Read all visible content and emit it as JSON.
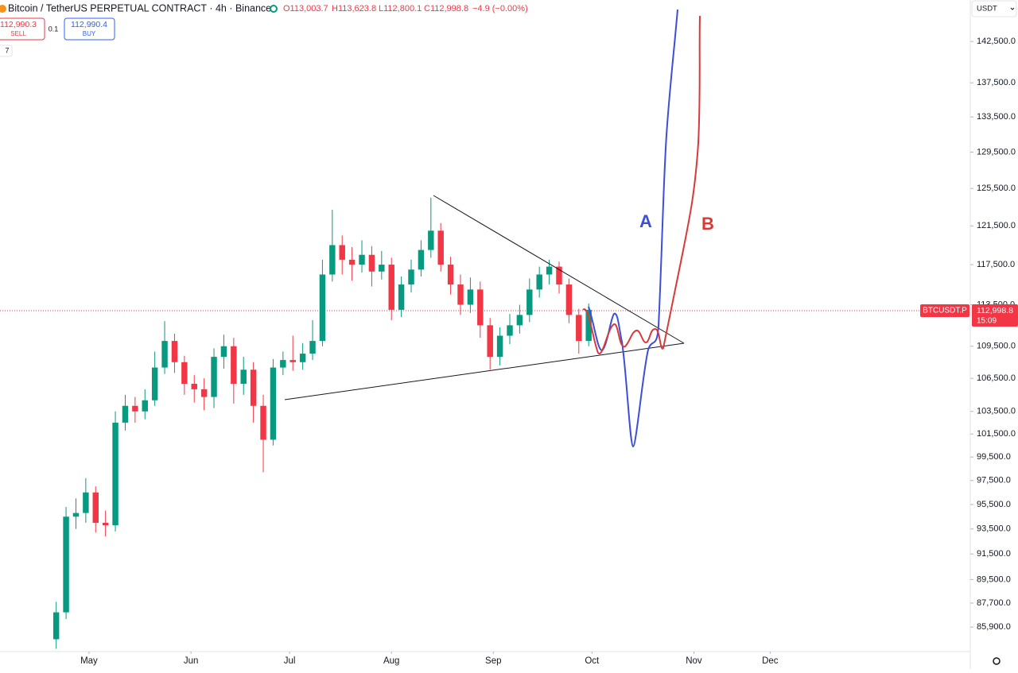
{
  "header": {
    "symbol": "Bitcoin / TetherUS PERPETUAL CONTRACT · 4h · Binance",
    "open": "O113,003.7",
    "high": "H113,623.8",
    "low": "L112,800.1",
    "close": "C112,998.8",
    "change": "−4.9 (−0.00%)"
  },
  "order_panel": {
    "sell_price": "112,990.3",
    "sell": "SELL",
    "spread": "0.1",
    "buy_price": "112,990.4",
    "buy": "BUY",
    "indicator": "7"
  },
  "currency": "USDT",
  "price_tag": {
    "symbol": "BTCUSDT.P",
    "price": "112,998.8",
    "countdown": "15:09"
  },
  "drawings": {
    "label_a": "A",
    "label_b": "B"
  },
  "chart_data": {
    "type": "candlestick",
    "up_color": "#089981",
    "down_color": "#f23645",
    "log_scale": true,
    "grid": false,
    "open": [
      85000,
      87000,
      94500,
      94800,
      96500,
      94000,
      93800,
      102500,
      104000,
      103500,
      104500,
      107500,
      110000,
      108000,
      106000,
      105500,
      104800,
      108500,
      109500,
      106000,
      107300,
      104000,
      101000,
      107500,
      108200,
      108000,
      108800,
      110000,
      116500,
      119500,
      118000,
      117500,
      118500,
      116800,
      117500,
      113000,
      115500,
      117000,
      119000,
      121000,
      117500,
      115500,
      113500,
      115000,
      111500,
      108500,
      110500,
      111500,
      112500,
      115000,
      116500,
      117300,
      115500,
      112500,
      110000
    ],
    "high": [
      87800,
      95300,
      96000,
      97700,
      97000,
      95000,
      103500,
      105000,
      104800,
      105500,
      109000,
      111900,
      110700,
      108600,
      106800,
      106500,
      109300,
      110600,
      110300,
      108500,
      108000,
      105000,
      108300,
      109000,
      110500,
      109800,
      112000,
      118000,
      123200,
      120500,
      119300,
      120000,
      119400,
      118900,
      118200,
      116300,
      118000,
      120000,
      124500,
      121800,
      118300,
      116500,
      116200,
      115800,
      112200,
      111300,
      112600,
      113500,
      116100,
      117300,
      118000,
      117800,
      116100,
      113100,
      113623.8
    ],
    "low": [
      84300,
      86500,
      93500,
      94000,
      93200,
      92900,
      93300,
      101800,
      102500,
      102800,
      104000,
      106900,
      107000,
      105000,
      104300,
      103600,
      103800,
      107400,
      104200,
      105000,
      102500,
      98200,
      100500,
      106800,
      107200,
      107300,
      108200,
      109500,
      115800,
      116500,
      115900,
      116700,
      115300,
      116000,
      112000,
      112300,
      114700,
      116300,
      118200,
      116800,
      114500,
      112500,
      112700,
      110300,
      107300,
      107700,
      109700,
      110700,
      111800,
      114200,
      115500,
      114600,
      111700,
      108800,
      109500
    ],
    "close": [
      87000,
      94500,
      94800,
      96500,
      94000,
      93800,
      102500,
      104000,
      103500,
      104500,
      107500,
      110000,
      108000,
      106000,
      105500,
      104800,
      108500,
      109500,
      106000,
      107300,
      104000,
      101000,
      107500,
      108200,
      108000,
      108800,
      110000,
      116500,
      119500,
      118000,
      117500,
      118500,
      116800,
      117500,
      113000,
      115500,
      117000,
      119000,
      121000,
      117500,
      115500,
      113500,
      115000,
      111500,
      108500,
      110500,
      111500,
      112500,
      115000,
      116500,
      117300,
      115500,
      112500,
      110000,
      112998.8
    ],
    "xlim": [
      -5.7,
      92.7
    ],
    "xticks": [
      {
        "value": 3.33,
        "label": "May"
      },
      {
        "value": 13.67,
        "label": "Jun"
      },
      {
        "value": 23.67,
        "label": "Jul"
      },
      {
        "value": 34,
        "label": "Aug"
      },
      {
        "value": 44.33,
        "label": "Sep"
      },
      {
        "value": 54.33,
        "label": "Oct"
      },
      {
        "value": 64.67,
        "label": "Nov"
      },
      {
        "value": 72.4,
        "label": "Dec"
      }
    ],
    "ylim": [
      84100,
      147700
    ],
    "yticks": [
      {
        "value": 142500,
        "label": "142,500.0"
      },
      {
        "value": 137500,
        "label": "137,500.0"
      },
      {
        "value": 133500,
        "label": "133,500.0"
      },
      {
        "value": 129500,
        "label": "129,500.0"
      },
      {
        "value": 125500,
        "label": "125,500.0"
      },
      {
        "value": 121500,
        "label": "121,500.0"
      },
      {
        "value": 117500,
        "label": "117,500.0"
      },
      {
        "value": 113500,
        "label": "113,500.0"
      },
      {
        "value": 109500,
        "label": "109,500.0"
      },
      {
        "value": 106500,
        "label": "106,500.0"
      },
      {
        "value": 103500,
        "label": "103,500.0"
      },
      {
        "value": 101500,
        "label": "101,500.0"
      },
      {
        "value": 99500,
        "label": "99,500.0"
      },
      {
        "value": 97500,
        "label": "97,500.0"
      },
      {
        "value": 95500,
        "label": "95,500.0"
      },
      {
        "value": 93500,
        "label": "93,500.0"
      },
      {
        "value": 91500,
        "label": "91,500.0"
      },
      {
        "value": 89500,
        "label": "89,500.0"
      },
      {
        "value": 87700,
        "label": "87,700.0"
      },
      {
        "value": 85900,
        "label": "85,900.0"
      }
    ]
  }
}
